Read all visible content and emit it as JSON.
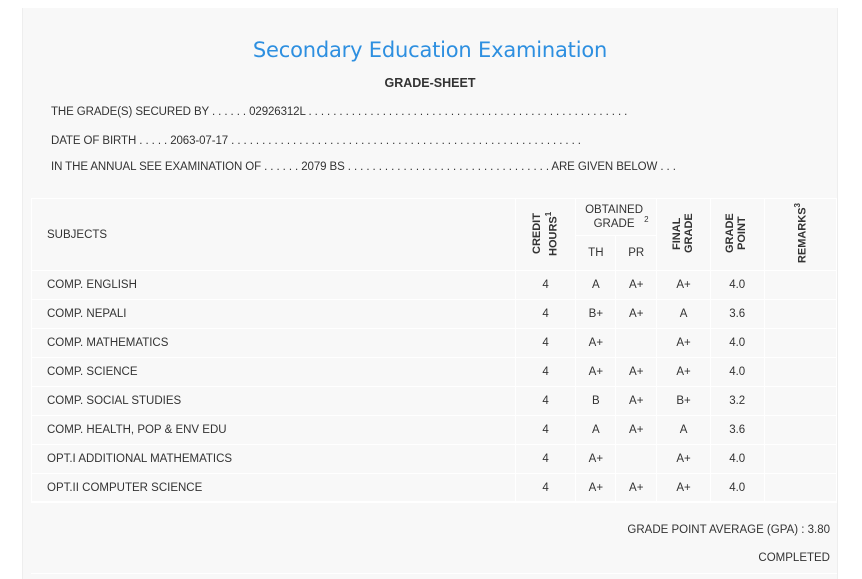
{
  "header": {
    "title": "Secondary Education Examination",
    "subtitle": "GRADE-SHEET",
    "secured_by": "THE GRADE(S) SECURED BY . . . . . . 02926312L . . . . . . . . . . . . . . . . . . . . . . . . . . . . . . . . . . . . . . . . . . . . . . . . . . . .",
    "dob": "DATE OF BIRTH . . . . . 2063-07-17 . . . . . . . . . . . . . . . . . . . . . . . . . . . . . . . . . . . . . . . . . . . . . . . . . . . . . . . . .",
    "exam": "IN THE ANNUAL SEE EXAMINATION OF . . . . . . 2079 BS . . . . . . . . . . . . . . . . . . . . . . . . . . . . . . . . . ARE GIVEN BELOW . . ."
  },
  "table": {
    "headers": {
      "subjects": "SUBJECTS",
      "credit_hours": "CREDIT HOURS",
      "credit_sup": "1",
      "obtained_grade": "OBTAINED GRADE",
      "obtained_sup": "2",
      "th": "TH",
      "pr": "PR",
      "final_grade": "FINAL GRADE",
      "grade_point": "GRADE POINT",
      "remarks": "REMARKS",
      "remarks_sup": "3"
    },
    "rows": [
      {
        "subject": "COMP. ENGLISH",
        "credit": "4",
        "th": "A",
        "pr": "A+",
        "final": "A+",
        "gp": "4.0",
        "remarks": ""
      },
      {
        "subject": "COMP. NEPALI",
        "credit": "4",
        "th": "B+",
        "pr": "A+",
        "final": "A",
        "gp": "3.6",
        "remarks": ""
      },
      {
        "subject": "COMP. MATHEMATICS",
        "credit": "4",
        "th": "A+",
        "pr": "",
        "final": "A+",
        "gp": "4.0",
        "remarks": ""
      },
      {
        "subject": "COMP. SCIENCE",
        "credit": "4",
        "th": "A+",
        "pr": "A+",
        "final": "A+",
        "gp": "4.0",
        "remarks": ""
      },
      {
        "subject": "COMP. SOCIAL STUDIES",
        "credit": "4",
        "th": "B",
        "pr": "A+",
        "final": "B+",
        "gp": "3.2",
        "remarks": ""
      },
      {
        "subject": "COMP. HEALTH, POP & ENV EDU",
        "credit": "4",
        "th": "A",
        "pr": "A+",
        "final": "A",
        "gp": "3.6",
        "remarks": ""
      },
      {
        "subject": "OPT.I ADDITIONAL MATHEMATICS",
        "credit": "4",
        "th": "A+",
        "pr": "",
        "final": "A+",
        "gp": "4.0",
        "remarks": ""
      },
      {
        "subject": "OPT.II COMPUTER SCIENCE",
        "credit": "4",
        "th": "A+",
        "pr": "A+",
        "final": "A+",
        "gp": "4.0",
        "remarks": ""
      }
    ]
  },
  "footer": {
    "gpa": "GRADE POINT AVERAGE (GPA) : 3.80",
    "status": "COMPLETED"
  }
}
